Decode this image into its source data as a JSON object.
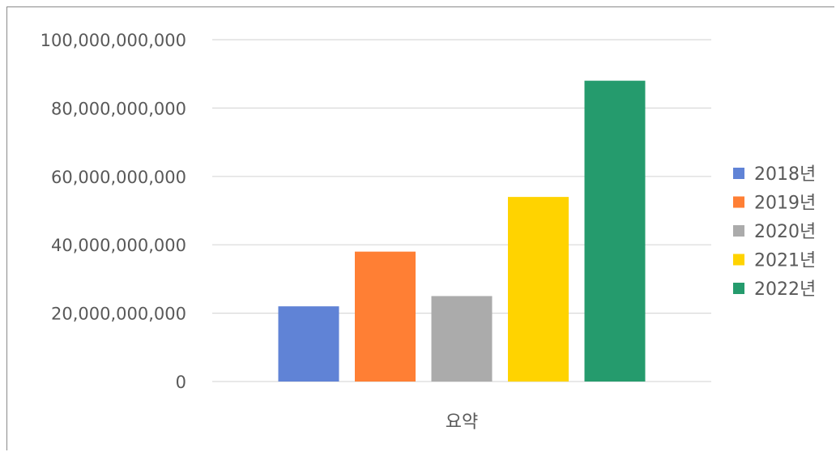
{
  "chart_data": {
    "type": "bar",
    "categories": [
      "요약"
    ],
    "series": [
      {
        "name": "2018년",
        "values": [
          22000000000
        ],
        "color": "#6083D6"
      },
      {
        "name": "2019년",
        "values": [
          38000000000
        ],
        "color": "#FF7F34"
      },
      {
        "name": "2020년",
        "values": [
          25000000000
        ],
        "color": "#ABABAB"
      },
      {
        "name": "2021년",
        "values": [
          54000000000
        ],
        "color": "#FFD300"
      },
      {
        "name": "2022년",
        "values": [
          88000000000
        ],
        "color": "#259B6D"
      }
    ],
    "ylim": [
      0,
      100000000000
    ],
    "y_ticks": [
      0,
      20000000000,
      40000000000,
      60000000000,
      80000000000,
      100000000000
    ],
    "y_tick_labels": [
      "0",
      "20,000,000,000",
      "40,000,000,000",
      "60,000,000,000",
      "80,000,000,000",
      "100,000,000,000"
    ],
    "grid": true,
    "legend_position": "right",
    "gridline_color": "#D9D9D9"
  }
}
